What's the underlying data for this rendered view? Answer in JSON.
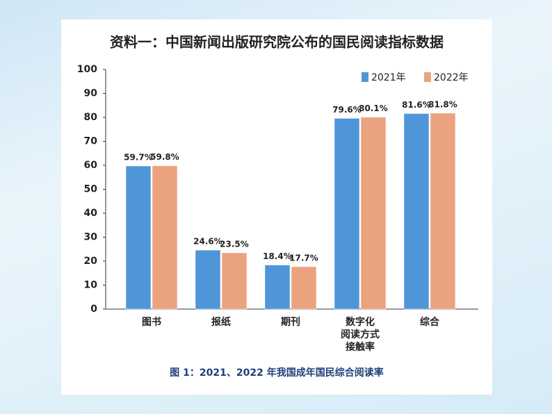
{
  "chart_data": {
    "type": "bar",
    "title": "资料一：中国新闻出版研究院公布的国民阅读指标数据",
    "caption": "图 1：2021、2022 年我国成年国民综合阅读率",
    "categories": [
      "图书",
      "报纸",
      "期刊",
      "数字化\n阅读方式\n接触率",
      "综合"
    ],
    "series": [
      {
        "name": "2021年",
        "color": "#4f96d8",
        "values": [
          59.7,
          24.6,
          18.4,
          79.6,
          81.6
        ],
        "value_labels": [
          "59.7%",
          "24.6%",
          "18.4%",
          "79.6%",
          "81.6%"
        ]
      },
      {
        "name": "2022年",
        "color": "#eba27f",
        "values": [
          59.8,
          23.5,
          17.7,
          80.1,
          81.8
        ],
        "value_labels": [
          "59.8%",
          "23.5%",
          "17.7%",
          "80.1%",
          "81.8%"
        ]
      }
    ],
    "ylim": [
      0,
      100
    ],
    "yticks": [
      0,
      10,
      20,
      30,
      40,
      50,
      60,
      70,
      80,
      90,
      100
    ],
    "grid": false,
    "legend": "top-right"
  }
}
